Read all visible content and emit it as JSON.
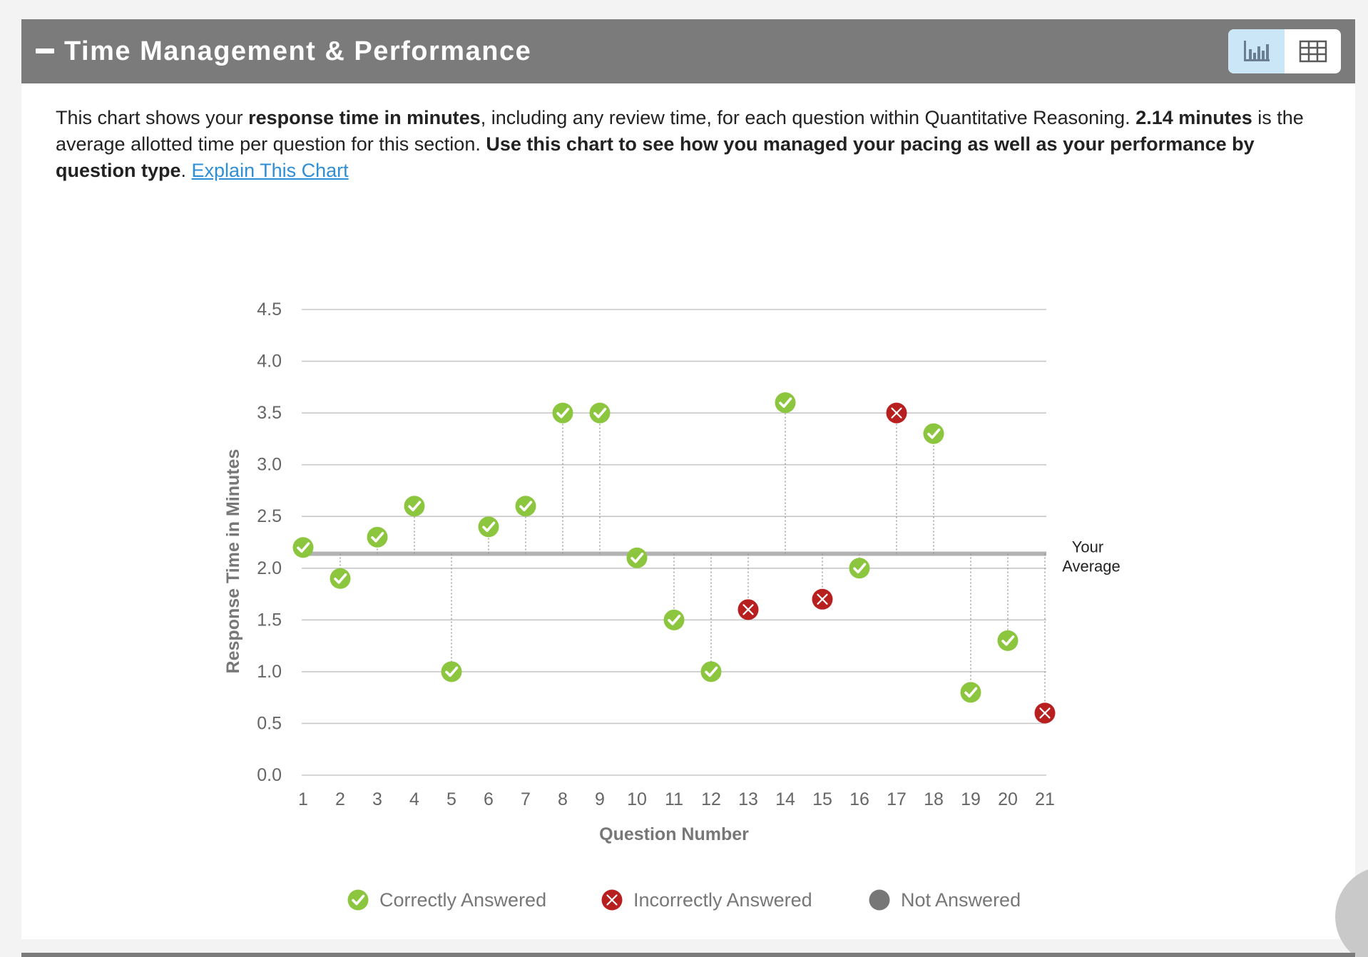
{
  "header": {
    "title": "Time Management & Performance",
    "collapse_icon": "minus-icon",
    "view_options": [
      {
        "name": "chart-view",
        "icon": "bar-chart-icon",
        "active": true
      },
      {
        "name": "table-view",
        "icon": "table-icon",
        "active": false
      }
    ]
  },
  "description": {
    "t1": "This chart shows your ",
    "b1": "response time in minutes",
    "t2": ", including any review time, for each question within Quantitative Reasoning. ",
    "b2": "2.14 minutes",
    "t3": " is the average allotted time per question for this section. ",
    "b3": "Use this chart to see how you managed your pacing as well as your performance by question type",
    "t4": ". ",
    "link": "Explain This Chart"
  },
  "colors": {
    "header_bg": "#7b7b7b",
    "correct": "#8cc63f",
    "incorrect": "#b7201f",
    "not_answered": "#777777",
    "average_line": "#b3b3b3",
    "grid": "#c8c8c8",
    "link": "#2e8fd6"
  },
  "chart_data": {
    "type": "scatter",
    "xlabel": "Question Number",
    "ylabel": "Response Time in Minutes",
    "ylim": [
      0,
      4.5
    ],
    "yticks": [
      "0.0",
      "0.5",
      "1.0",
      "1.5",
      "2.0",
      "2.5",
      "3.0",
      "3.5",
      "4.0",
      "4.5"
    ],
    "x": [
      1,
      2,
      3,
      4,
      5,
      6,
      7,
      8,
      9,
      10,
      11,
      12,
      13,
      14,
      15,
      16,
      17,
      18,
      19,
      20,
      21
    ],
    "values": [
      2.2,
      1.9,
      2.3,
      2.6,
      1.0,
      2.4,
      2.6,
      3.5,
      3.5,
      2.1,
      1.5,
      1.0,
      1.6,
      3.6,
      1.7,
      2.0,
      3.5,
      3.3,
      0.8,
      1.3,
      0.6
    ],
    "status": [
      "correct",
      "correct",
      "correct",
      "correct",
      "correct",
      "correct",
      "correct",
      "correct",
      "correct",
      "correct",
      "correct",
      "correct",
      "incorrect",
      "correct",
      "incorrect",
      "correct",
      "incorrect",
      "correct",
      "correct",
      "correct",
      "incorrect"
    ],
    "average": 2.14,
    "average_label": [
      "Your",
      "Average"
    ],
    "legend": [
      {
        "label": "Correctly Answered",
        "status": "correct"
      },
      {
        "label": "Incorrectly Answered",
        "status": "incorrect"
      },
      {
        "label": "Not Answered",
        "status": "not_answered"
      }
    ]
  }
}
